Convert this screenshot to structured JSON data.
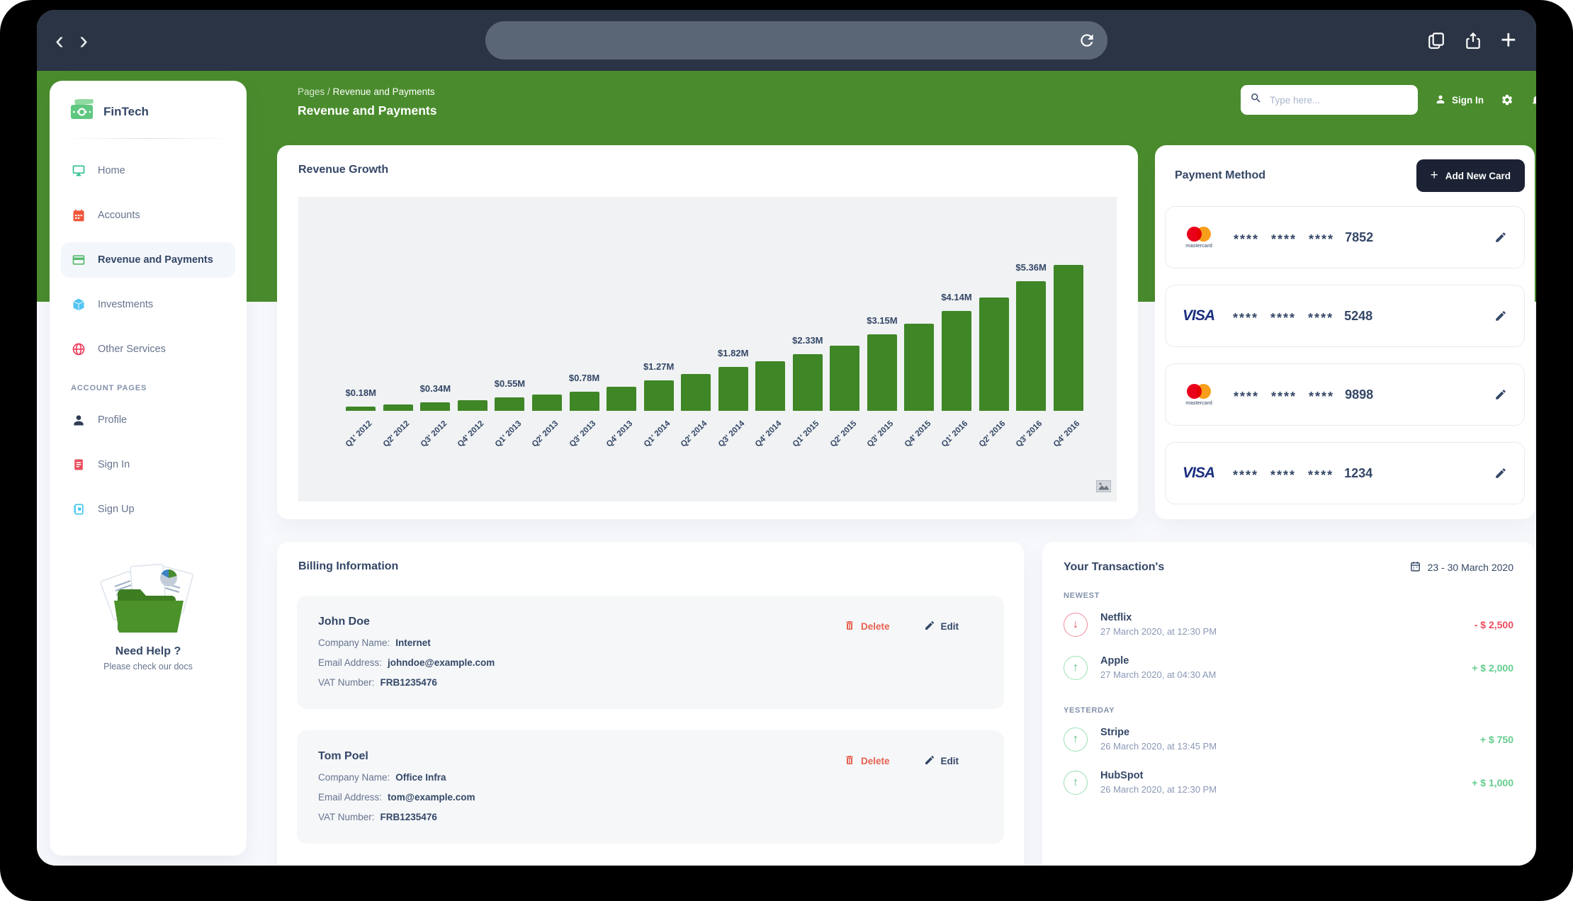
{
  "colors": {
    "header_green": "#4a8c2d",
    "bar_green": "#3f8626",
    "chrome_navy": "#2a3444",
    "text_dark": "#344767",
    "text_gray": "#67748e",
    "danger_red": "#ea4b5f",
    "success_green": "#63cd8e",
    "add_button_dark": "#1c2233"
  },
  "icons": {
    "down_arrow": "↓",
    "up_arrow": "↑",
    "plus": "+",
    "back": "‹",
    "forward": "›",
    "breadcrumb_sep": "/"
  },
  "sidebar": {
    "brand": "FinTech",
    "nav": [
      {
        "label": "Home",
        "icon": "monitor-icon"
      },
      {
        "label": "Accounts",
        "icon": "calendar-icon"
      },
      {
        "label": "Revenue and Payments",
        "icon": "credit-card-icon",
        "active": true
      },
      {
        "label": "Investments",
        "icon": "cube-icon"
      },
      {
        "label": "Other Services",
        "icon": "globe-icon"
      }
    ],
    "section_label": "ACCOUNT PAGES",
    "account_nav": [
      {
        "label": "Profile",
        "icon": "person-icon"
      },
      {
        "label": "Sign In",
        "icon": "document-icon"
      },
      {
        "label": "Sign Up",
        "icon": "notebook-icon"
      }
    ],
    "help": {
      "title": "Need Help ?",
      "subtitle": "Please check our docs"
    }
  },
  "header": {
    "breadcrumb_root": "Pages",
    "breadcrumb_current": "Revenue and Payments",
    "title": "Revenue and Payments",
    "search_placeholder": "Type here...",
    "sign_in": "Sign In"
  },
  "chart_data": {
    "type": "bar",
    "title": "Revenue Growth",
    "categories": [
      "Q1' 2012",
      "Q2' 2012",
      "Q3' 2012",
      "Q4' 2012",
      "Q1' 2013",
      "Q2' 2013",
      "Q3' 2013",
      "Q4' 2013",
      "Q1' 2014",
      "Q2' 2014",
      "Q3' 2014",
      "Q4' 2014",
      "Q1' 2015",
      "Q2' 2015",
      "Q3' 2015",
      "Q4' 2015",
      "Q1' 2016",
      "Q2' 2016",
      "Q3' 2016",
      "Q4' 2016"
    ],
    "values": [
      0.18,
      0.25,
      0.34,
      0.44,
      0.55,
      0.66,
      0.78,
      1.0,
      1.27,
      1.53,
      1.82,
      2.05,
      2.33,
      2.7,
      3.15,
      3.6,
      4.14,
      4.7,
      5.36,
      6.05
    ],
    "bar_labels": [
      "$0.18M",
      null,
      "$0.34M",
      null,
      "$0.55M",
      null,
      "$0.78M",
      null,
      "$1.27M",
      null,
      "$1.82M",
      null,
      "$2.33M",
      null,
      "$3.15M",
      null,
      "$4.14M",
      null,
      "$5.36M",
      null
    ],
    "unit": "millions USD",
    "bar_color": "#3f8626",
    "xlabel": "",
    "ylabel": "",
    "ylim": [
      0,
      6.3
    ],
    "grid": false,
    "legend": false
  },
  "revenue_card": {
    "title": "Revenue Growth"
  },
  "payment": {
    "title": "Payment Method",
    "add_button": "Add New Card",
    "mastercard_label": "mastercard",
    "visa_label": "VISA",
    "cards": [
      {
        "brand": "mastercard",
        "mask": "**** **** ****",
        "last4": "7852"
      },
      {
        "brand": "visa",
        "mask": "**** **** ****",
        "last4": "5248"
      },
      {
        "brand": "mastercard",
        "mask": "**** **** ****",
        "last4": "9898"
      },
      {
        "brand": "visa",
        "mask": "**** **** ****",
        "last4": "1234"
      }
    ]
  },
  "billing": {
    "title": "Billing Information",
    "labels": {
      "company": "Company Name:",
      "email": "Email Address:",
      "vat": "VAT Number:"
    },
    "delete_label": "Delete",
    "edit_label": "Edit",
    "entries": [
      {
        "name": "John Doe",
        "company": "Internet",
        "email": "johndoe@example.com",
        "vat": "FRB1235476"
      },
      {
        "name": "Tom Poel",
        "company": "Office Infra",
        "email": "tom@example.com",
        "vat": "FRB1235476"
      }
    ]
  },
  "transactions": {
    "title": "Your Transaction's",
    "date_range": "23 - 30 March 2020",
    "groups": [
      {
        "label": "NEWEST",
        "items": [
          {
            "name": "Netflix",
            "date": "27 March 2020, at 12:30 PM",
            "amount": "- $ 2,500",
            "direction": "down"
          },
          {
            "name": "Apple",
            "date": "27 March 2020, at 04:30 AM",
            "amount": "+ $ 2,000",
            "direction": "up"
          }
        ]
      },
      {
        "label": "YESTERDAY",
        "items": [
          {
            "name": "Stripe",
            "date": "26 March 2020, at 13:45 PM",
            "amount": "+ $ 750",
            "direction": "up"
          },
          {
            "name": "HubSpot",
            "date": "26 March 2020, at 12:30 PM",
            "amount": "+ $ 1,000",
            "direction": "up"
          }
        ]
      }
    ]
  }
}
